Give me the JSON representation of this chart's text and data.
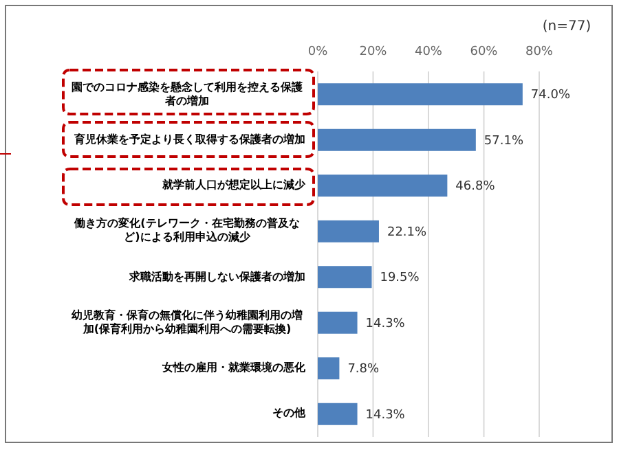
{
  "chart_data": {
    "type": "bar",
    "orientation": "horizontal",
    "subtitle": "(n=77)",
    "categories": [
      "園でのコロナ感染を懸念して利用を控える保護者の増加",
      "育児休業を予定より長く取得する保護者の増加",
      "就学前人口が想定以上に減少",
      "働き方の変化(テレワーク・在宅勤務の普及など)による利用申込の減少",
      "求職活動を再開しない保護者の増加",
      "幼児教育・保育の無償化に伴う幼稚園利用の増加(保育利用から幼稚園利用への需要転換)",
      "女性の雇用・就業環境の悪化",
      "その他"
    ],
    "values": [
      74.0,
      57.1,
      46.8,
      22.1,
      19.5,
      14.3,
      7.8,
      14.3
    ],
    "value_labels": [
      "74.0%",
      "57.1%",
      "46.8%",
      "22.1%",
      "19.5%",
      "14.3%",
      "7.8%",
      "14.3%"
    ],
    "color": "#4f81bd",
    "xlim": [
      0,
      80
    ],
    "xticks": [
      {
        "value": 0,
        "label": "0%"
      },
      {
        "value": 20,
        "label": "20%"
      },
      {
        "value": 40,
        "label": "40%"
      },
      {
        "value": 60,
        "label": "60%"
      },
      {
        "value": 80,
        "label": "80%"
      }
    ],
    "grid": "x"
  }
}
